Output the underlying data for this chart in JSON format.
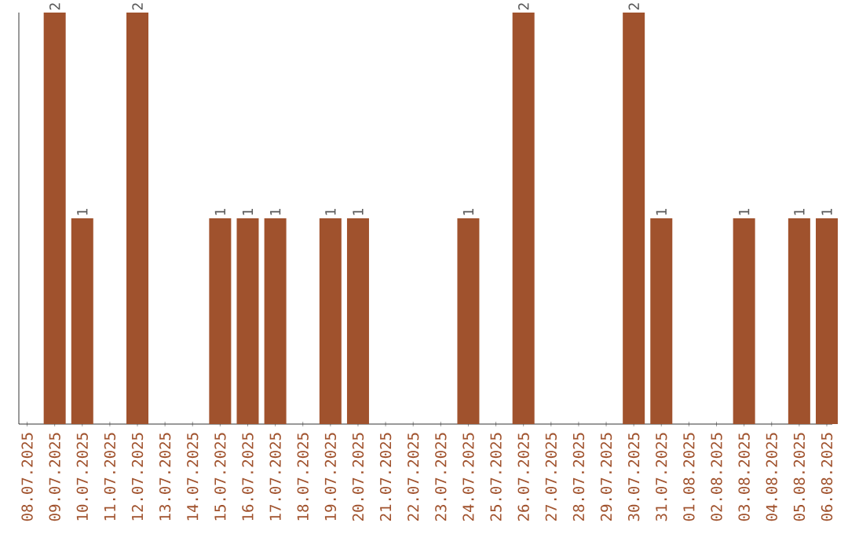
{
  "chart_data": {
    "type": "bar",
    "categories": [
      "08.07.2025",
      "09.07.2025",
      "10.07.2025",
      "11.07.2025",
      "12.07.2025",
      "13.07.2025",
      "14.07.2025",
      "15.07.2025",
      "16.07.2025",
      "17.07.2025",
      "18.07.2025",
      "19.07.2025",
      "20.07.2025",
      "21.07.2025",
      "22.07.2025",
      "23.07.2025",
      "24.07.2025",
      "25.07.2025",
      "26.07.2025",
      "27.07.2025",
      "28.07.2025",
      "29.07.2025",
      "30.07.2025",
      "31.07.2025",
      "01.08.2025",
      "02.08.2025",
      "03.08.2025",
      "04.08.2025",
      "05.08.2025",
      "06.08.2025"
    ],
    "values": [
      null,
      2,
      1,
      null,
      2,
      null,
      null,
      1,
      1,
      1,
      null,
      1,
      1,
      null,
      null,
      null,
      1,
      null,
      2,
      null,
      null,
      null,
      2,
      1,
      null,
      null,
      1,
      null,
      1,
      1
    ],
    "color": "#a0522d",
    "data_labels": true
  }
}
